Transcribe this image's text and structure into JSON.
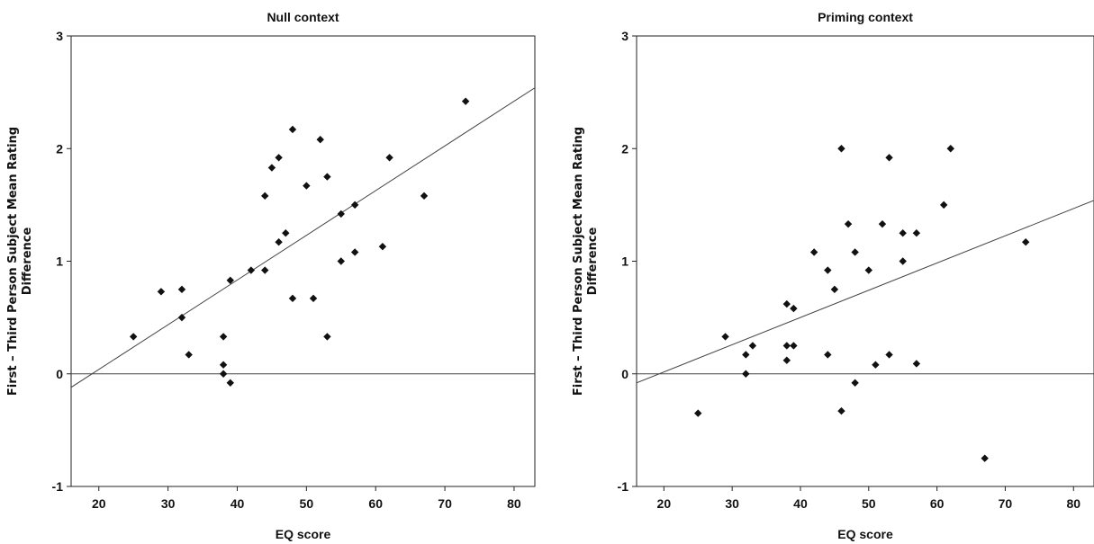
{
  "chart_data": [
    {
      "type": "scatter",
      "title": "Null context",
      "xlabel": "EQ score",
      "ylabel_lines": [
        "First – Third Person Subject Mean Rating",
        "Difference"
      ],
      "xlim": [
        16,
        83
      ],
      "ylim": [
        -1,
        3
      ],
      "xticks": [
        20,
        30,
        40,
        50,
        60,
        70,
        80
      ],
      "yticks": [
        -1,
        0,
        1,
        2,
        3
      ],
      "reference_line_y": 0,
      "fit_line": {
        "x": [
          16,
          83
        ],
        "y": [
          -0.12,
          2.54
        ]
      },
      "points": [
        {
          "x": 25,
          "y": 0.33
        },
        {
          "x": 29,
          "y": 0.73
        },
        {
          "x": 32,
          "y": 0.75
        },
        {
          "x": 32,
          "y": 0.5
        },
        {
          "x": 33,
          "y": 0.17
        },
        {
          "x": 38,
          "y": 0.33
        },
        {
          "x": 38,
          "y": 0.08
        },
        {
          "x": 38,
          "y": 0.0
        },
        {
          "x": 39,
          "y": -0.08
        },
        {
          "x": 39,
          "y": 0.83
        },
        {
          "x": 42,
          "y": 0.92
        },
        {
          "x": 44,
          "y": 0.92
        },
        {
          "x": 44,
          "y": 1.58
        },
        {
          "x": 45,
          "y": 1.83
        },
        {
          "x": 46,
          "y": 1.92
        },
        {
          "x": 46,
          "y": 1.17
        },
        {
          "x": 47,
          "y": 1.25
        },
        {
          "x": 48,
          "y": 2.17
        },
        {
          "x": 48,
          "y": 0.67
        },
        {
          "x": 50,
          "y": 1.67
        },
        {
          "x": 51,
          "y": 0.67
        },
        {
          "x": 52,
          "y": 2.08
        },
        {
          "x": 53,
          "y": 1.75
        },
        {
          "x": 53,
          "y": 0.33
        },
        {
          "x": 55,
          "y": 1.42
        },
        {
          "x": 55,
          "y": 1.0
        },
        {
          "x": 57,
          "y": 1.5
        },
        {
          "x": 57,
          "y": 1.08
        },
        {
          "x": 61,
          "y": 1.13
        },
        {
          "x": 62,
          "y": 1.92
        },
        {
          "x": 67,
          "y": 1.58
        },
        {
          "x": 73,
          "y": 2.42
        }
      ]
    },
    {
      "type": "scatter",
      "title": "Priming context",
      "xlabel": "EQ score",
      "ylabel_lines": [
        "First – Third Person Subject Mean Rating",
        "Difference"
      ],
      "xlim": [
        16,
        83
      ],
      "ylim": [
        -1,
        3
      ],
      "xticks": [
        20,
        30,
        40,
        50,
        60,
        70,
        80
      ],
      "yticks": [
        -1,
        0,
        1,
        2,
        3
      ],
      "reference_line_y": 0,
      "fit_line": {
        "x": [
          16,
          83
        ],
        "y": [
          -0.08,
          1.54
        ]
      },
      "points": [
        {
          "x": 25,
          "y": -0.35
        },
        {
          "x": 29,
          "y": 0.33
        },
        {
          "x": 32,
          "y": 0.17
        },
        {
          "x": 32,
          "y": 0.0
        },
        {
          "x": 33,
          "y": 0.25
        },
        {
          "x": 38,
          "y": 0.62
        },
        {
          "x": 38,
          "y": 0.25
        },
        {
          "x": 38,
          "y": 0.12
        },
        {
          "x": 39,
          "y": 0.58
        },
        {
          "x": 39,
          "y": 0.25
        },
        {
          "x": 42,
          "y": 1.08
        },
        {
          "x": 44,
          "y": 0.92
        },
        {
          "x": 44,
          "y": 0.17
        },
        {
          "x": 45,
          "y": 0.75
        },
        {
          "x": 46,
          "y": 2.0
        },
        {
          "x": 46,
          "y": -0.33
        },
        {
          "x": 47,
          "y": 1.33
        },
        {
          "x": 48,
          "y": 1.08
        },
        {
          "x": 48,
          "y": -0.08
        },
        {
          "x": 50,
          "y": 0.92
        },
        {
          "x": 51,
          "y": 0.08
        },
        {
          "x": 52,
          "y": 1.33
        },
        {
          "x": 53,
          "y": 1.92
        },
        {
          "x": 53,
          "y": 0.17
        },
        {
          "x": 55,
          "y": 1.25
        },
        {
          "x": 55,
          "y": 1.0
        },
        {
          "x": 57,
          "y": 1.25
        },
        {
          "x": 57,
          "y": 0.09
        },
        {
          "x": 61,
          "y": 1.5
        },
        {
          "x": 62,
          "y": 2.0
        },
        {
          "x": 67,
          "y": -0.75
        },
        {
          "x": 73,
          "y": 1.17
        }
      ]
    }
  ]
}
